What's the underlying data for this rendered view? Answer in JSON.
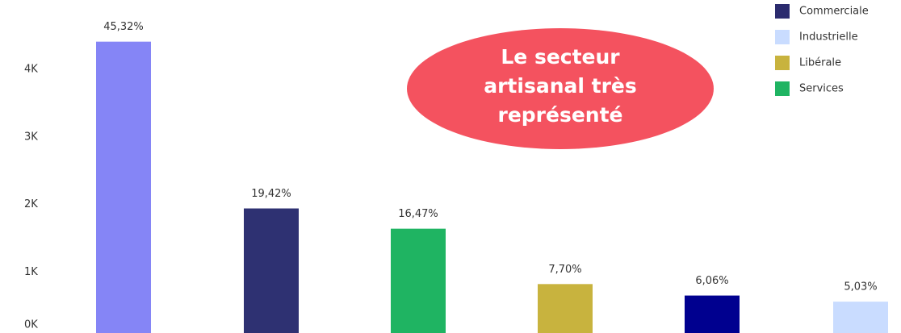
{
  "chart_data": {
    "type": "bar",
    "values": [
      4410,
      1940,
      1640,
      820,
      650,
      560
    ],
    "colors": [
      "#8585f6",
      "#2e3172",
      "#1fb462",
      "#c8b33e",
      "#00008f",
      "#c9dcff"
    ],
    "shares": [
      45.32,
      19.42,
      16.47,
      7.7,
      6.06,
      5.03
    ],
    "share_labels": [
      "45,32%",
      "19,42%",
      "16,47%",
      "7,70%",
      "6,06%",
      "5,03%"
    ],
    "ylim": [
      0,
      5000
    ],
    "yticks": [
      {
        "value": 0,
        "label": "0K"
      },
      {
        "value": 1000,
        "label": "1K"
      },
      {
        "value": 2000,
        "label": "2K"
      },
      {
        "value": 3000,
        "label": "3K"
      },
      {
        "value": 4000,
        "label": "4K"
      }
    ],
    "legend": [
      {
        "name": "Commerciale",
        "color": "#2b2b6e"
      },
      {
        "name": "Industrielle",
        "color": "#c9dcff"
      },
      {
        "name": "Libérale",
        "color": "#c8b33e"
      },
      {
        "name": "Services",
        "color": "#1fb462"
      }
    ],
    "annotation": {
      "lines": [
        "Le secteur",
        "artisanal très",
        "représenté"
      ],
      "color": "#f4525f"
    }
  }
}
